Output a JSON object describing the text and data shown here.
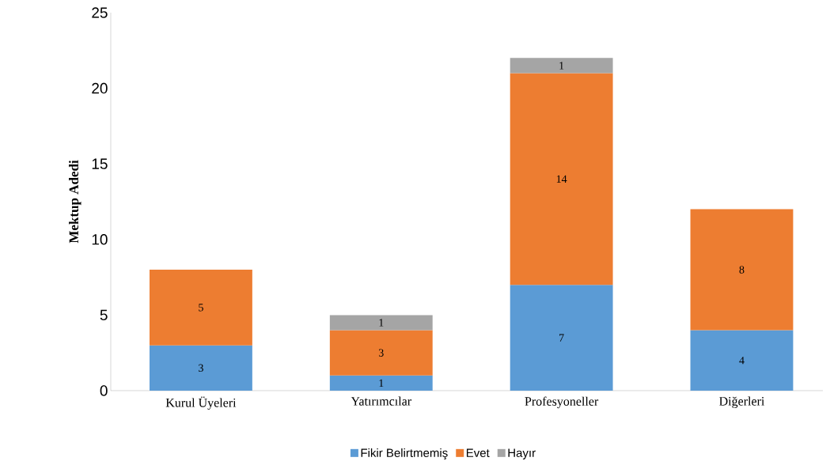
{
  "chart_data": {
    "type": "bar",
    "stacked": true,
    "ylabel": "Mektup Adedi",
    "categories": [
      "Kurul Üyeleri",
      "Yatırımcılar",
      "Profesyoneller",
      "Diğerleri"
    ],
    "series": [
      {
        "name": "Fikir Belirtmemiş",
        "color": "#5b9bd5",
        "values": [
          3,
          1,
          7,
          4
        ]
      },
      {
        "name": "Evet",
        "color": "#ed7d31",
        "values": [
          5,
          3,
          14,
          8
        ]
      },
      {
        "name": "Hayır",
        "color": "#a5a5a5",
        "values": [
          null,
          1,
          1,
          null
        ]
      }
    ],
    "ylim": [
      0,
      25
    ],
    "yticks": [
      0,
      5,
      10,
      15,
      20,
      25
    ],
    "data_labels": true,
    "legend": "bottom"
  }
}
